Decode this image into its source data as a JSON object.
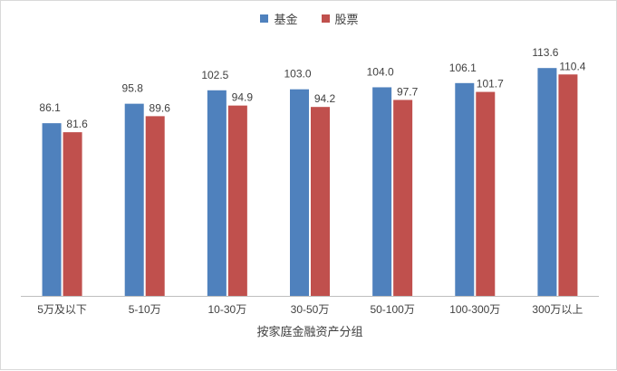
{
  "chart_data": {
    "type": "bar",
    "title": "",
    "xlabel": "按家庭金融资产分组",
    "ylabel": "",
    "categories": [
      "5万及以下",
      "5-10万",
      "10-30万",
      "30-50万",
      "50-100万",
      "100-300万",
      "300万以上"
    ],
    "series": [
      {
        "name": "基金",
        "color": "#4f81bd",
        "values": [
          86.1,
          95.8,
          102.5,
          103.0,
          104.0,
          106.1,
          113.6
        ]
      },
      {
        "name": "股票",
        "color": "#c0504d",
        "values": [
          81.6,
          89.6,
          94.9,
          94.2,
          97.7,
          101.7,
          110.4
        ]
      }
    ],
    "ylim": [
      0,
      120
    ],
    "value_labels": [
      [
        "86.1",
        "95.8",
        "102.5",
        "103.0",
        "104.0",
        "106.1",
        "113.6"
      ],
      [
        "81.6",
        "89.6",
        "94.9",
        "94.2",
        "97.7",
        "101.7",
        "110.4"
      ]
    ],
    "grid": false,
    "legend": "top-center"
  }
}
